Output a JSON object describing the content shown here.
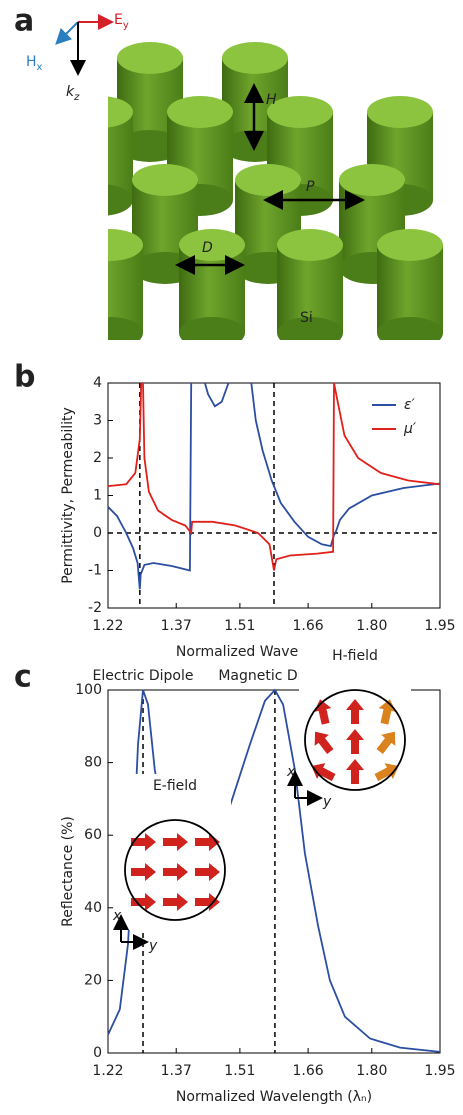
{
  "panel_labels": [
    "a",
    "b",
    "c"
  ],
  "diagram": {
    "e": "E",
    "e_sub": "y",
    "h": "H",
    "h_sub": "x",
    "k": "k",
    "k_sub": "z",
    "height": "H",
    "period": "P",
    "diameter": "D",
    "material": "Si"
  },
  "chart_data": [
    {
      "type": "line",
      "y_label": "Permittivity, Permeability",
      "x_label": "Normalized Wavelength (λₙ)",
      "xlim": [
        1.22,
        1.95
      ],
      "ylim": [
        -2,
        4
      ],
      "xticks": [
        1.22,
        1.37,
        1.51,
        1.66,
        {
          "value": 1.8,
          "label": "1.80"
        },
        1.95
      ],
      "yticks": [
        -2,
        -1,
        0,
        1,
        2,
        3,
        4
      ],
      "dashed_x": [
        1.29,
        1.585
      ],
      "dashed_y": [
        0
      ],
      "legend": "upper right",
      "series": [
        {
          "name": "ε′",
          "color": "#2b4ea2",
          "x": [
            1.22,
            1.24,
            1.26,
            1.275,
            1.285,
            1.29,
            1.292,
            1.3,
            1.32,
            1.36,
            1.4,
            1.403,
            1.41,
            1.433,
            1.44,
            1.455,
            1.47,
            1.485,
            1.5,
            1.535,
            1.545,
            1.56,
            1.58,
            1.6,
            1.63,
            1.66,
            1.69,
            1.71,
            1.717,
            1.72,
            1.73,
            1.75,
            1.8,
            1.87,
            1.95
          ],
          "values": [
            0.7,
            0.45,
            0,
            -0.4,
            -0.8,
            -1.5,
            -1.1,
            -0.85,
            -0.8,
            -0.88,
            -1,
            4,
            null,
            4,
            3.7,
            3.38,
            3.5,
            4,
            null,
            4,
            3,
            2.2,
            1.4,
            0.8,
            0.3,
            -0.1,
            -0.3,
            -0.35,
            -0.05,
            0,
            0.35,
            0.65,
            1,
            1.2,
            1.32
          ]
        },
        {
          "name": "μ′",
          "color": "#e0201b",
          "x": [
            1.22,
            1.26,
            1.28,
            1.29,
            1.293,
            1.295,
            1.297,
            1.3,
            1.31,
            1.33,
            1.36,
            1.39,
            1.403,
            1.405,
            1.45,
            1.5,
            1.55,
            1.575,
            1.585,
            1.59,
            1.62,
            1.68,
            1.715,
            1.717,
            1.725,
            1.74,
            1.77,
            1.82,
            1.88,
            1.95
          ],
          "values": [
            1.25,
            1.3,
            1.6,
            2.5,
            4,
            null,
            4,
            2,
            1.1,
            0.6,
            0.35,
            0.2,
            0,
            0.3,
            0.3,
            0.2,
            0,
            -0.3,
            -1,
            -0.7,
            -0.6,
            -0.55,
            -0.5,
            4,
            3.5,
            2.6,
            2,
            1.6,
            1.4,
            1.3
          ]
        }
      ]
    },
    {
      "type": "line",
      "y_label": "Reflectance (%)",
      "x_label": "Normalized Wavelength (λₙ)",
      "xlim": [
        1.22,
        1.95
      ],
      "ylim": [
        0,
        100
      ],
      "xticks": [
        1.22,
        1.37,
        1.51,
        1.66,
        {
          "value": 1.8,
          "label": "1.80"
        },
        1.95
      ],
      "yticks": [
        0,
        20,
        40,
        60,
        80,
        100
      ],
      "dashed_x": [
        1.297,
        1.587
      ],
      "annotations": [
        "Electric Dipole",
        "Magnetic Dipole"
      ],
      "inset_labels": [
        "E-field",
        "H-field"
      ],
      "inset_axes": [
        "x",
        "y"
      ],
      "series": [
        {
          "color": "#2b4ea2",
          "x": [
            1.22,
            1.246,
            1.264,
            1.277,
            1.286,
            1.297,
            1.308,
            1.323,
            1.345,
            1.378,
            1.411,
            1.444,
            1.488,
            1.532,
            1.565,
            1.587,
            1.605,
            1.631,
            1.653,
            1.682,
            1.708,
            1.741,
            1.796,
            1.862,
            1.95
          ],
          "values": [
            5,
            12,
            30,
            60,
            85,
            100,
            96,
            78,
            62,
            53,
            51,
            55,
            68,
            85,
            97,
            100,
            96,
            78,
            55,
            35,
            20,
            10,
            4,
            1.5,
            0.3
          ]
        }
      ]
    }
  ]
}
